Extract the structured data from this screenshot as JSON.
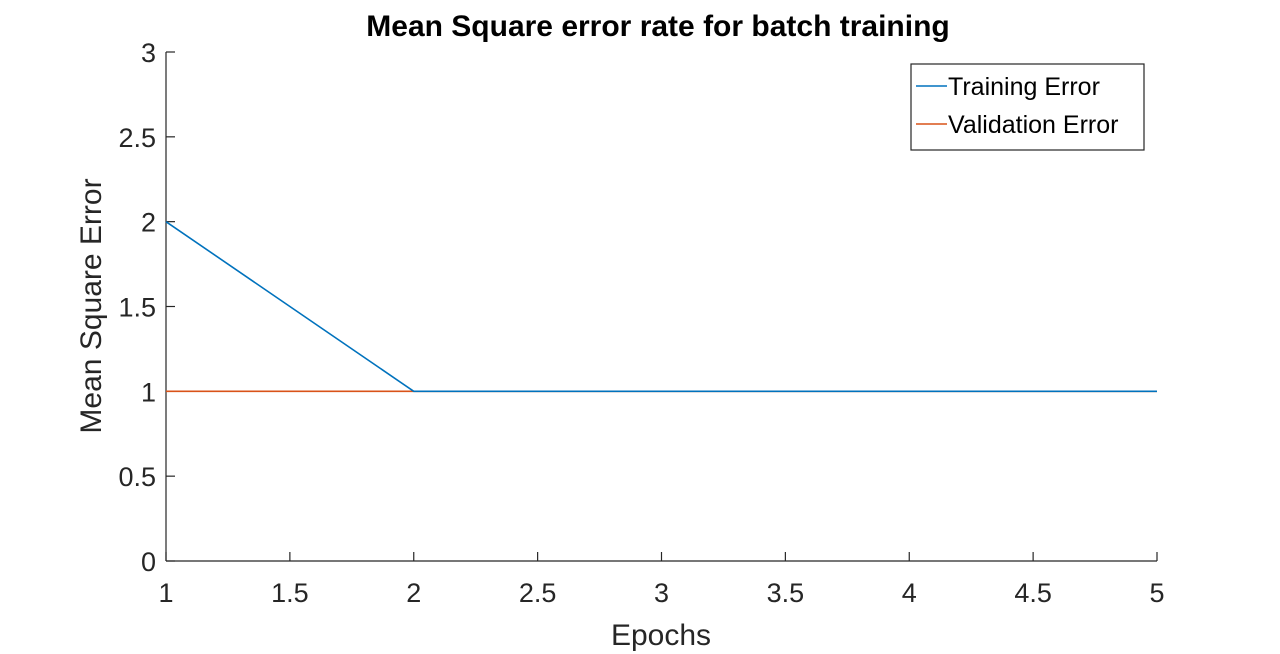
{
  "chart_data": {
    "type": "line",
    "title": "Mean Square error rate for batch training",
    "xlabel": "Epochs",
    "ylabel": "Mean Square Error",
    "xlim": [
      1,
      5
    ],
    "ylim": [
      0,
      3
    ],
    "xticks": [
      1,
      1.5,
      2,
      2.5,
      3,
      3.5,
      4,
      4.5,
      5
    ],
    "xtick_labels": [
      "1",
      "1.5",
      "2",
      "2.5",
      "3",
      "3.5",
      "4",
      "4.5",
      "5"
    ],
    "yticks": [
      0,
      0.5,
      1,
      1.5,
      2,
      2.5,
      3
    ],
    "ytick_labels": [
      "0",
      "0.5",
      "1",
      "1.5",
      "2",
      "2.5",
      "3"
    ],
    "grid": false,
    "legend_position": "top-right",
    "series": [
      {
        "name": "Training Error",
        "color": "#0072BD",
        "x": [
          1,
          2,
          3,
          4,
          5
        ],
        "y": [
          2,
          1,
          1,
          1,
          1
        ]
      },
      {
        "name": "Validation Error",
        "color": "#D95319",
        "x": [
          1,
          2,
          3,
          4,
          5
        ],
        "y": [
          1,
          1,
          1,
          1,
          1
        ]
      }
    ]
  }
}
